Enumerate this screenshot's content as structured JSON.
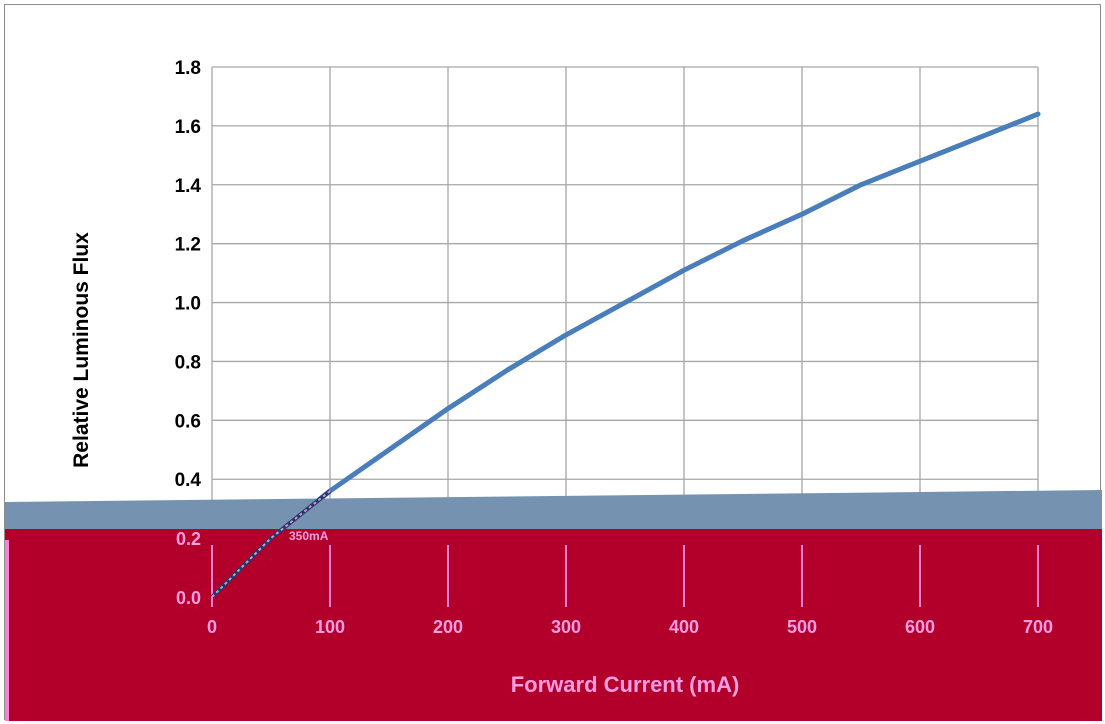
{
  "chart_data": {
    "type": "line",
    "title": "",
    "ylabel": "Relative Luminous Flux",
    "xlabel": "Forward Current (mA)",
    "xlim": [
      0,
      700
    ],
    "ylim": [
      0.0,
      1.8
    ],
    "x_ticks": [
      "0",
      "100",
      "200",
      "300",
      "400",
      "500",
      "600",
      "700"
    ],
    "y_ticks": [
      "0.0",
      "0.2",
      "0.4",
      "0.6",
      "0.8",
      "1.0",
      "1.2",
      "1.4",
      "1.6",
      "1.8"
    ],
    "grid": true,
    "series": [
      {
        "values": [
          {
            "x": 0,
            "y": 0.0
          },
          {
            "x": 50,
            "y": 0.2
          },
          {
            "x": 100,
            "y": 0.36
          },
          {
            "x": 150,
            "y": 0.5
          },
          {
            "x": 200,
            "y": 0.64
          },
          {
            "x": 250,
            "y": 0.77
          },
          {
            "x": 300,
            "y": 0.89
          },
          {
            "x": 350,
            "y": 1.0
          },
          {
            "x": 400,
            "y": 1.11
          },
          {
            "x": 450,
            "y": 1.21
          },
          {
            "x": 500,
            "y": 1.3
          },
          {
            "x": 550,
            "y": 1.4
          },
          {
            "x": 600,
            "y": 1.48
          },
          {
            "x": 650,
            "y": 1.56
          },
          {
            "x": 700,
            "y": 1.64
          }
        ]
      }
    ],
    "annotations": [
      "350mA"
    ],
    "colors": {
      "line": "#4a7ebb",
      "line_low": "#1f3a6b",
      "line_overlay": "#e58bd6",
      "band_red": "#b3002b",
      "band_blue": "#7593b0"
    }
  }
}
